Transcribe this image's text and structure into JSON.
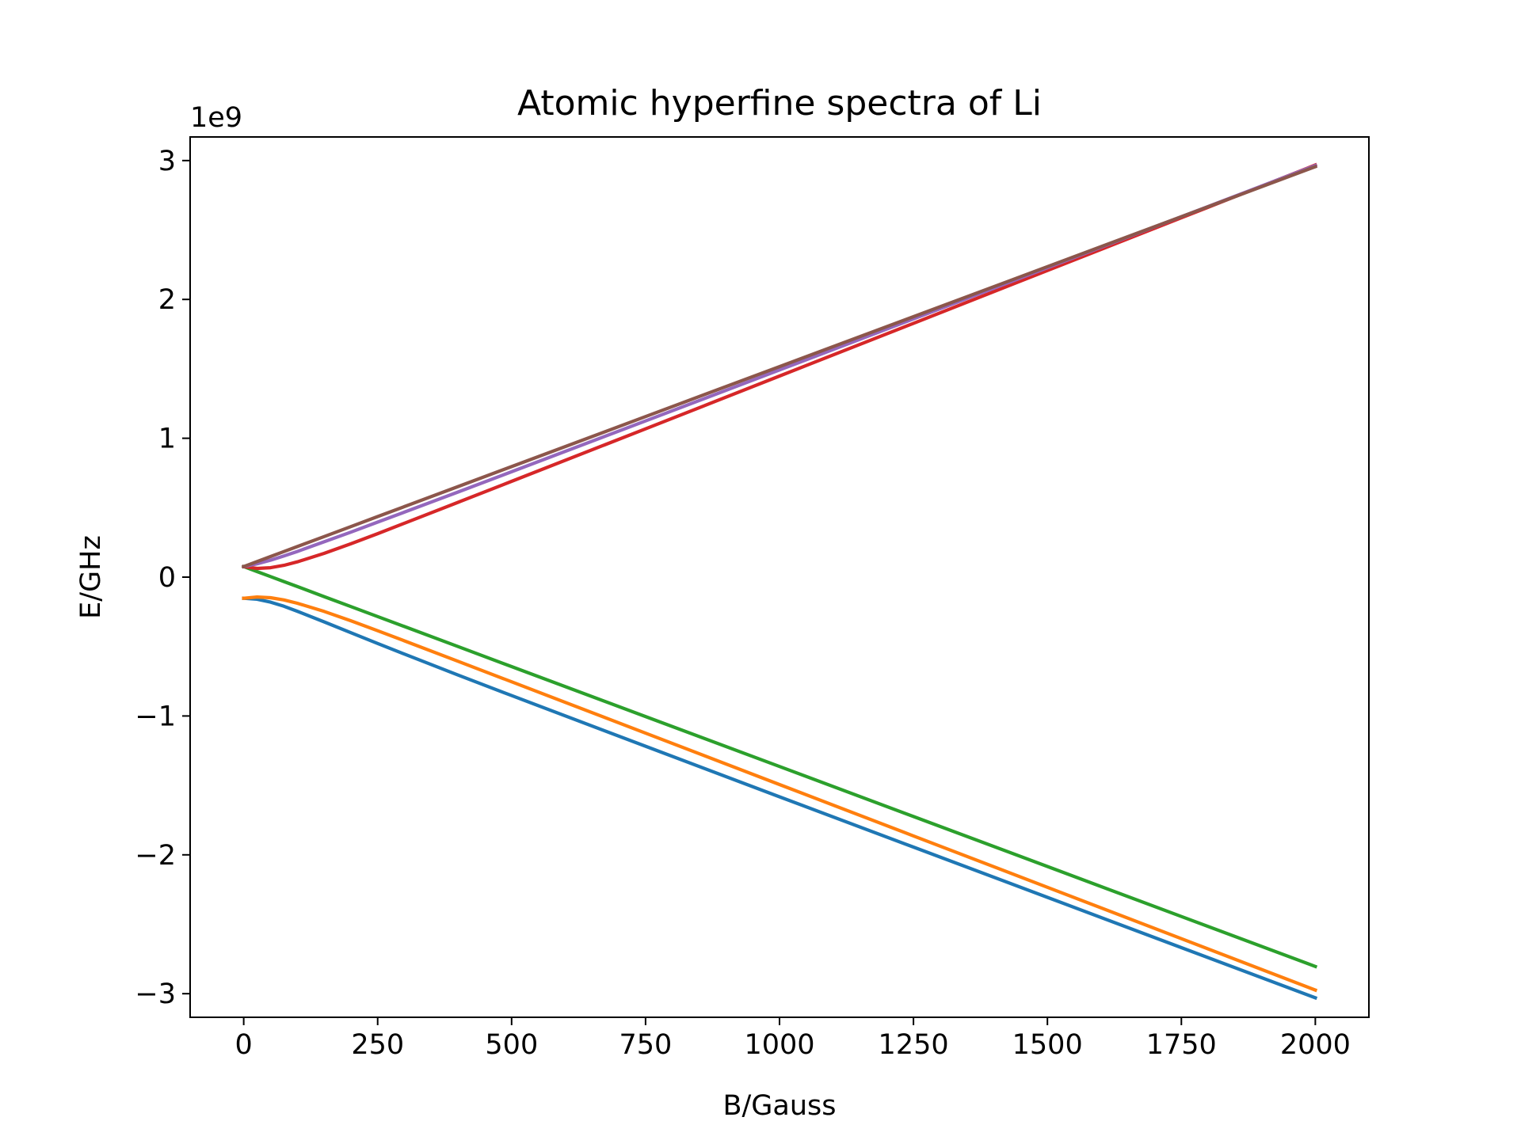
{
  "chart_data": {
    "type": "line",
    "title": "Atomic hyperfine spectra of Li",
    "xlabel": "B/Gauss",
    "ylabel": "E/GHz",
    "y_offset_label": "1e9",
    "xlim": [
      -100,
      2100
    ],
    "ylim": [
      -3.17,
      3.17
    ],
    "y_scale_factor": 1000000000,
    "xticks": [
      0,
      250,
      500,
      750,
      1000,
      1250,
      1500,
      1750,
      2000
    ],
    "yticks": [
      -3,
      -2,
      -1,
      0,
      1,
      2,
      3
    ],
    "xtick_labels": [
      "0",
      "250",
      "500",
      "750",
      "1000",
      "1250",
      "1500",
      "1750",
      "2000"
    ],
    "ytick_labels": [
      "−3",
      "−2",
      "−1",
      "0",
      "1",
      "2",
      "3"
    ],
    "grid": false,
    "legend": "none",
    "x": [
      0,
      25,
      50,
      75,
      100,
      150,
      200,
      250,
      300,
      400,
      500,
      750,
      1000,
      1250,
      1500,
      1750,
      2000
    ],
    "series": [
      {
        "color": "#1f77b4",
        "values": [
          -0.152,
          -0.159,
          -0.18,
          -0.21,
          -0.246,
          -0.322,
          -0.4,
          -0.478,
          -0.554,
          -0.705,
          -0.853,
          -1.218,
          -1.582,
          -1.944,
          -2.306,
          -2.668,
          -3.03
        ]
      },
      {
        "color": "#ff7f0e",
        "values": [
          -0.152,
          -0.143,
          -0.148,
          -0.164,
          -0.188,
          -0.247,
          -0.314,
          -0.386,
          -0.459,
          -0.606,
          -0.754,
          -1.124,
          -1.494,
          -1.864,
          -2.234,
          -2.604,
          -2.974
        ]
      },
      {
        "color": "#2ca02c",
        "values": [
          0.076,
          0.04,
          0.004,
          -0.032,
          -0.068,
          -0.14,
          -0.212,
          -0.284,
          -0.356,
          -0.5,
          -0.644,
          -1.004,
          -1.364,
          -1.724,
          -2.084,
          -2.444,
          -2.804
        ]
      },
      {
        "color": "#d62728",
        "values": [
          0.076,
          0.063,
          0.068,
          0.085,
          0.11,
          0.171,
          0.24,
          0.313,
          0.388,
          0.539,
          0.69,
          1.068,
          1.448,
          1.828,
          2.208,
          2.588,
          2.968
        ]
      },
      {
        "color": "#9467bd",
        "values": [
          0.076,
          0.096,
          0.122,
          0.152,
          0.185,
          0.254,
          0.324,
          0.396,
          0.468,
          0.613,
          0.759,
          1.125,
          1.492,
          1.86,
          2.228,
          2.596,
          2.964
        ]
      },
      {
        "color": "#8c564b",
        "values": [
          0.076,
          0.112,
          0.148,
          0.184,
          0.22,
          0.292,
          0.364,
          0.436,
          0.508,
          0.652,
          0.796,
          1.156,
          1.516,
          1.876,
          2.236,
          2.596,
          2.956
        ]
      }
    ]
  }
}
